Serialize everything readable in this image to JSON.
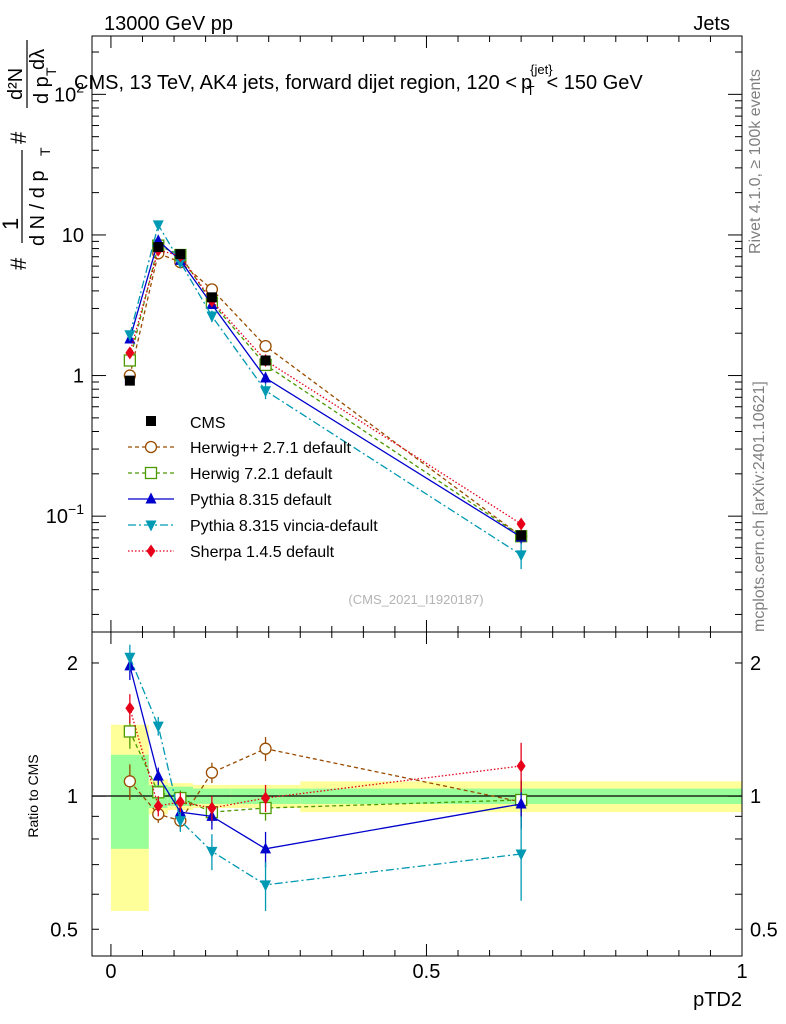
{
  "header": {
    "left": "13000 GeV pp",
    "right": "Jets",
    "rivet": "Rivet 4.1.0, ≥ 100k events",
    "mcplots": "mcplots.cern.ch [arXiv:2401.10621]"
  },
  "chart_data": [
    {
      "panel": "main",
      "type": "line",
      "title": "CMS, 13 TeV, AK4 jets, forward dijet region, 120 < p_T^{jet} < 150 GeV",
      "title_parts": {
        "pre": "CMS, 13 TeV, AK4 jets, forward dijet region, 120 <",
        "p": "p",
        "sup": "{jet}",
        "sub": "T",
        "post": "< 150 GeV"
      },
      "ylabel_parts": {
        "one": "1",
        "dN": "d N / d p",
        "dN_sub": "T",
        "hash1": "#",
        "hash2": "#",
        "d2N": "d²N",
        "dpT": "d p",
        "dpT_sub": "T",
        "dlam": "dλ"
      },
      "yscale": "log",
      "ylim": [
        0.015,
        260
      ],
      "ytick_labels": [
        {
          "value": 0.1,
          "base": "10",
          "exp": "−1"
        },
        {
          "value": 1,
          "base": "1",
          "exp": ""
        },
        {
          "value": 10,
          "base": "10",
          "exp": ""
        },
        {
          "value": 100,
          "base": "10",
          "exp": "2"
        }
      ],
      "xlim": [
        -0.03,
        1.0
      ],
      "watermark": "(CMS_2021_I1920187)",
      "data": {
        "name": "CMS",
        "x": [
          0.03,
          0.075,
          0.11,
          0.16,
          0.245,
          0.65
        ],
        "y": [
          0.92,
          8.2,
          7.3,
          3.6,
          1.28,
          0.073
        ],
        "yerr": [
          0.06,
          0.3,
          0.3,
          0.15,
          0.06,
          0.004
        ],
        "band_edges": [
          0.0,
          0.06,
          0.09,
          0.13,
          0.19,
          0.3,
          1.0
        ],
        "band_stat": [
          0.24,
          0.06,
          0.05,
          0.04,
          0.04,
          0.04
        ],
        "band_tot": [
          0.45,
          0.09,
          0.07,
          0.06,
          0.06,
          0.08
        ]
      },
      "series": [
        {
          "name": "Herwig++ 2.7.1 default",
          "color": "#994c00",
          "marker": "open-circle",
          "dash": "4,3",
          "x": [
            0.03,
            0.075,
            0.11,
            0.16,
            0.245,
            0.65
          ],
          "y": [
            1.0,
            7.4,
            6.4,
            4.1,
            1.62,
            0.072
          ],
          "yerr": [
            0.07,
            0.3,
            0.25,
            0.2,
            0.1,
            0.005
          ]
        },
        {
          "name": "Herwig 7.2.1 default",
          "color": "#4c9900",
          "marker": "open-square",
          "dash": "4,3",
          "x": [
            0.03,
            0.075,
            0.11,
            0.16,
            0.245,
            0.65
          ],
          "y": [
            1.28,
            8.4,
            7.2,
            3.3,
            1.19,
            0.072
          ],
          "yerr": [
            0.08,
            0.3,
            0.3,
            0.15,
            0.08,
            0.005
          ]
        },
        {
          "name": "Pythia 8.315 default",
          "color": "#0000cc",
          "marker": "filled-triangle-up",
          "dash": "",
          "x": [
            0.03,
            0.075,
            0.11,
            0.16,
            0.245,
            0.65
          ],
          "y": [
            1.82,
            9.1,
            6.6,
            3.2,
            0.96,
            0.071
          ],
          "yerr": [
            0.1,
            0.35,
            0.3,
            0.2,
            0.09,
            0.008
          ]
        },
        {
          "name": "Pythia 8.315 vincia-default",
          "color": "#0099b3",
          "marker": "filled-triangle-down",
          "dash": "8,3,2,3",
          "x": [
            0.03,
            0.075,
            0.11,
            0.16,
            0.245,
            0.65
          ],
          "y": [
            1.95,
            11.8,
            6.4,
            2.65,
            0.78,
            0.053
          ],
          "yerr": [
            0.12,
            0.5,
            0.35,
            0.25,
            0.1,
            0.011
          ]
        },
        {
          "name": "Sherpa 1.4.5 default",
          "color": "#e6001a",
          "marker": "filled-diamond",
          "dash": "1.5,2",
          "x": [
            0.03,
            0.075,
            0.11,
            0.16,
            0.245,
            0.65
          ],
          "y": [
            1.45,
            7.8,
            7.1,
            3.4,
            1.28,
            0.088
          ],
          "yerr": [
            0.08,
            0.35,
            0.35,
            0.2,
            0.09,
            0.007
          ]
        }
      ]
    },
    {
      "panel": "ratio",
      "type": "line",
      "ylabel": "Ratio to CMS",
      "yscale": "log",
      "ylim": [
        0.435,
        2.35
      ],
      "ytick_labels": [
        {
          "value": 0.5,
          "label": "0.5"
        },
        {
          "value": 1,
          "label": "1"
        },
        {
          "value": 2,
          "label": "2"
        }
      ],
      "xlim": [
        -0.03,
        1.0
      ],
      "xtick_labels": [
        {
          "value": 0,
          "label": "0"
        },
        {
          "value": 0.5,
          "label": "0.5"
        },
        {
          "value": 1,
          "label": "1"
        }
      ],
      "xlabel": "pTD2",
      "series": [
        {
          "name": "Herwig++ 2.7.1 default",
          "color": "#994c00",
          "marker": "open-circle",
          "dash": "4,3",
          "x": [
            0.03,
            0.075,
            0.11,
            0.16,
            0.245,
            0.65
          ],
          "y": [
            1.08,
            0.91,
            0.88,
            1.13,
            1.28,
            0.97
          ],
          "yerr": [
            0.1,
            0.04,
            0.04,
            0.06,
            0.08,
            0.12
          ]
        },
        {
          "name": "Herwig 7.2.1 default",
          "color": "#4c9900",
          "marker": "open-square",
          "dash": "4,3",
          "x": [
            0.03,
            0.075,
            0.11,
            0.16,
            0.245,
            0.65
          ],
          "y": [
            1.4,
            1.02,
            0.99,
            0.92,
            0.94,
            0.98
          ],
          "yerr": [
            0.12,
            0.04,
            0.04,
            0.05,
            0.06,
            0.1
          ]
        },
        {
          "name": "Pythia 8.315 default",
          "color": "#0000cc",
          "marker": "filled-triangle-up",
          "dash": "",
          "x": [
            0.03,
            0.075,
            0.11,
            0.16,
            0.245,
            0.65
          ],
          "y": [
            1.97,
            1.11,
            0.92,
            0.9,
            0.76,
            0.96
          ],
          "yerr": [
            0.14,
            0.05,
            0.05,
            0.06,
            0.07,
            0.12
          ]
        },
        {
          "name": "Pythia 8.315 vincia-default",
          "color": "#0099b3",
          "marker": "filled-triangle-down",
          "dash": "8,3,2,3",
          "x": [
            0.03,
            0.075,
            0.11,
            0.16,
            0.245,
            0.65
          ],
          "y": [
            2.06,
            1.44,
            0.88,
            0.75,
            0.63,
            0.74
          ],
          "yerr": [
            0.14,
            0.07,
            0.05,
            0.07,
            0.08,
            0.16
          ]
        },
        {
          "name": "Sherpa 1.4.5 default",
          "color": "#e6001a",
          "marker": "filled-diamond",
          "dash": "1.5,2",
          "x": [
            0.03,
            0.075,
            0.11,
            0.16,
            0.245,
            0.65
          ],
          "y": [
            1.58,
            0.95,
            0.97,
            0.94,
            0.99,
            1.17
          ],
          "yerr": [
            0.12,
            0.05,
            0.05,
            0.06,
            0.07,
            0.15
          ]
        }
      ]
    }
  ]
}
